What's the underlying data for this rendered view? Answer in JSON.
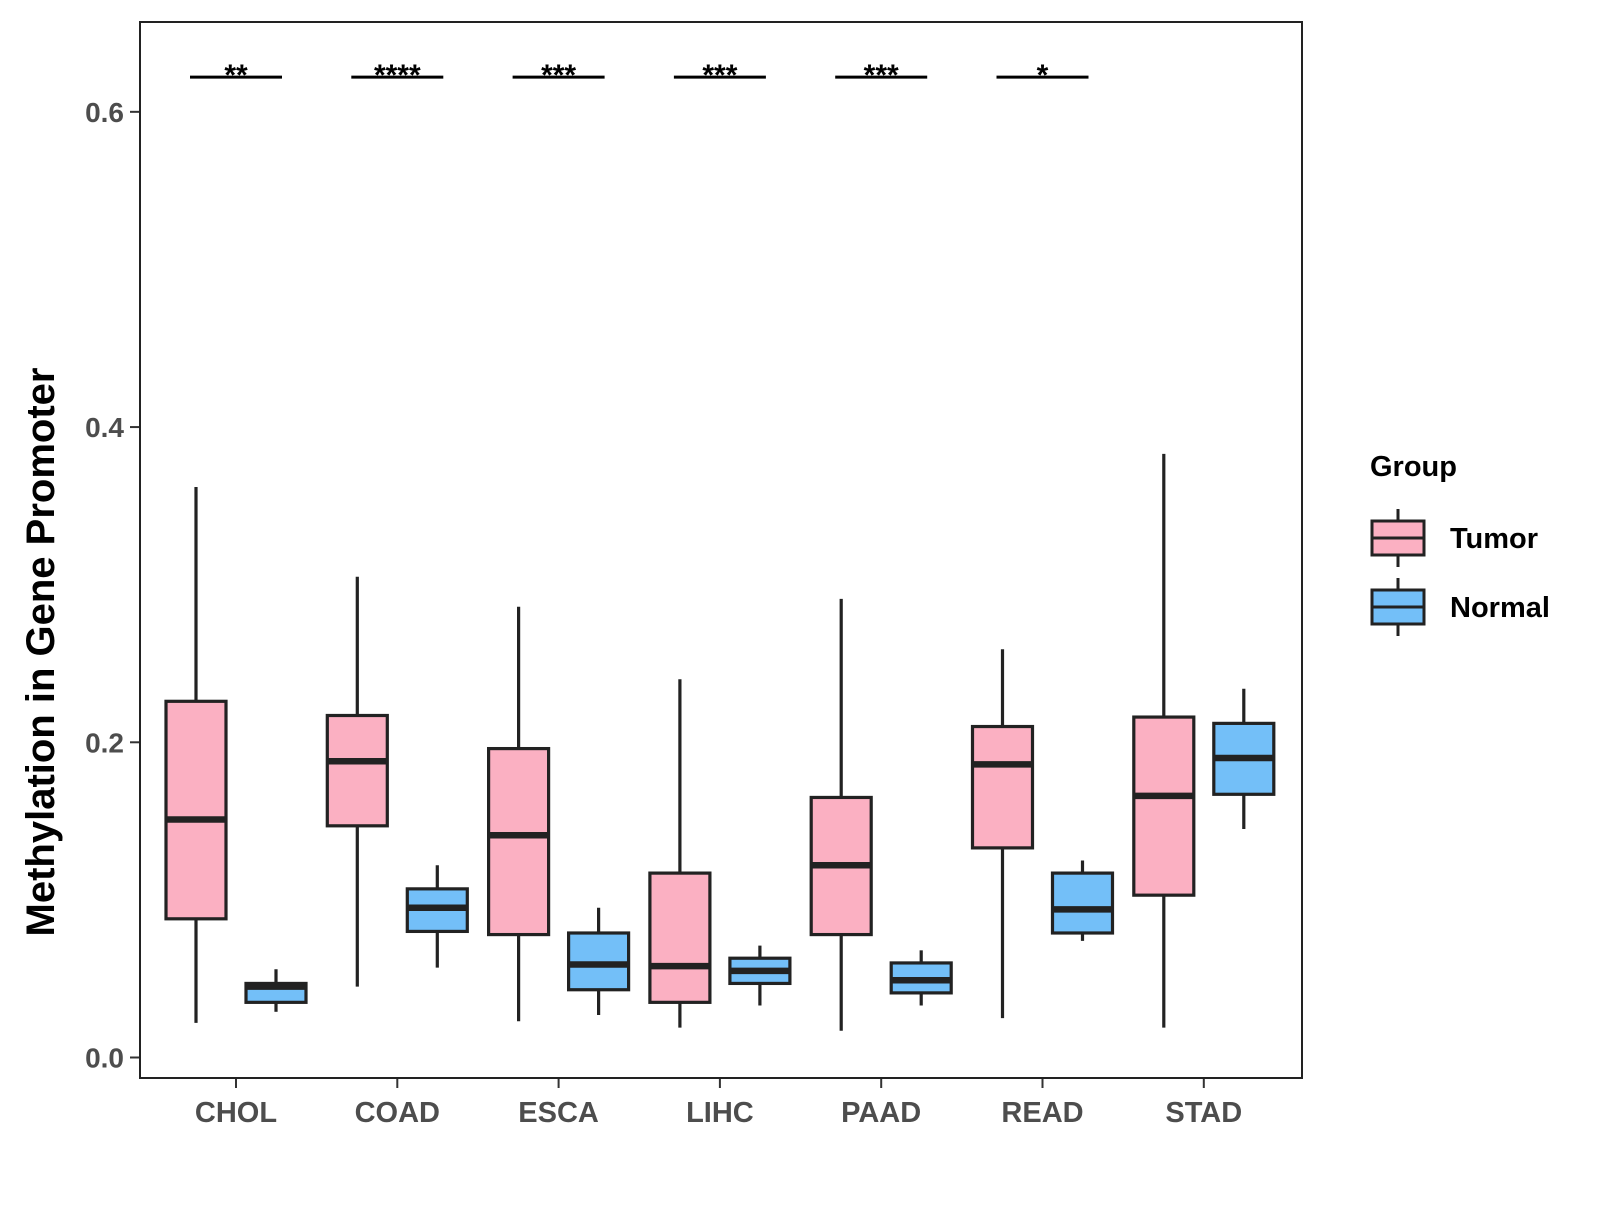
{
  "chart_data": {
    "type": "boxplot",
    "title": "",
    "xlabel": "",
    "ylabel": "Methylation in Gene Promoter",
    "ylim": [
      -0.013,
      0.657
    ],
    "yticks": [
      0.0,
      0.2,
      0.4,
      0.6
    ],
    "ytick_labels": [
      "0.0",
      "0.2",
      "0.4",
      "0.6"
    ],
    "categories": [
      "CHOL",
      "COAD",
      "ESCA",
      "LIHC",
      "PAAD",
      "READ",
      "STAD"
    ],
    "legend": {
      "title": "Group",
      "placement": "right",
      "items": [
        {
          "name": "Tumor",
          "color": "#FBB0C2"
        },
        {
          "name": "Normal",
          "color": "#73BFF8"
        }
      ]
    },
    "series": [
      {
        "name": "Tumor",
        "color": "#FBB0C2",
        "boxes": [
          {
            "min": 0.022,
            "q1": 0.088,
            "median": 0.151,
            "q3": 0.226,
            "max": 0.362
          },
          {
            "min": 0.045,
            "q1": 0.147,
            "median": 0.188,
            "q3": 0.217,
            "max": 0.305
          },
          {
            "min": 0.023,
            "q1": 0.078,
            "median": 0.141,
            "q3": 0.196,
            "max": 0.286
          },
          {
            "min": 0.019,
            "q1": 0.035,
            "median": 0.058,
            "q3": 0.117,
            "max": 0.24
          },
          {
            "min": 0.017,
            "q1": 0.078,
            "median": 0.122,
            "q3": 0.165,
            "max": 0.291
          },
          {
            "min": 0.025,
            "q1": 0.133,
            "median": 0.186,
            "q3": 0.21,
            "max": 0.259
          },
          {
            "min": 0.019,
            "q1": 0.103,
            "median": 0.166,
            "q3": 0.216,
            "max": 0.383
          }
        ]
      },
      {
        "name": "Normal",
        "color": "#73BFF8",
        "boxes": [
          {
            "min": 0.029,
            "q1": 0.035,
            "median": 0.045,
            "q3": 0.047,
            "max": 0.056
          },
          {
            "min": 0.057,
            "q1": 0.08,
            "median": 0.095,
            "q3": 0.107,
            "max": 0.122
          },
          {
            "min": 0.027,
            "q1": 0.043,
            "median": 0.059,
            "q3": 0.079,
            "max": 0.095
          },
          {
            "min": 0.033,
            "q1": 0.047,
            "median": 0.055,
            "q3": 0.063,
            "max": 0.071
          },
          {
            "min": 0.033,
            "q1": 0.041,
            "median": 0.049,
            "q3": 0.06,
            "max": 0.068
          },
          {
            "min": 0.074,
            "q1": 0.079,
            "median": 0.094,
            "q3": 0.117,
            "max": 0.125
          },
          {
            "min": 0.145,
            "q1": 0.167,
            "median": 0.19,
            "q3": 0.212,
            "max": 0.234
          }
        ]
      }
    ],
    "significance": [
      {
        "category": "CHOL",
        "label": "**"
      },
      {
        "category": "COAD",
        "label": "****"
      },
      {
        "category": "ESCA",
        "label": "***"
      },
      {
        "category": "LIHC",
        "label": "***"
      },
      {
        "category": "PAAD",
        "label": "***"
      },
      {
        "category": "READ",
        "label": "*"
      }
    ],
    "significance_y": 0.622
  }
}
